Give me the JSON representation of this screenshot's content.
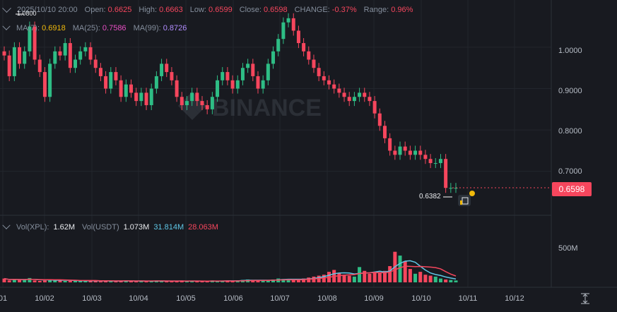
{
  "header": {
    "datetime": "2025/10/10 20:00",
    "open_label": "Open:",
    "open": "0.6625",
    "high_label": "High:",
    "high": "0.6663",
    "low_label": "Low:",
    "low": "0.6599",
    "close_label": "Close:",
    "close": "0.6598",
    "change_label": "CHANGE:",
    "change": "-0.37%",
    "range_label": "Range:",
    "range": "0.96%"
  },
  "ma": {
    "ma7_label": "MA(7):",
    "ma7": "0.6918",
    "ma25_label": "MA(25):",
    "ma25": "0.7586",
    "ma99_label": "MA(99):",
    "ma99": "0.8726"
  },
  "volume": {
    "vol_xpl_label": "Vol(XPL):",
    "vol_xpl": "1.62M",
    "vol_usdt_label": "Vol(USDT)",
    "vol_usdt": "1.073M",
    "ma_a": "31.814M",
    "ma_b": "28.063M"
  },
  "high_marker": "1.0800",
  "low_marker": "0.6382",
  "current_price": "0.6598",
  "watermark": "BINANCE",
  "colors": {
    "up": "#2ebd85",
    "down": "#f6465d",
    "ma7": "#f0b90b",
    "ma25": "#e84fc4",
    "ma99": "#b18cfe",
    "vol_ma_a": "#5fc7e6",
    "vol_ma_b": "#f6465d"
  },
  "chart_data": {
    "type": "candlestick",
    "y_ticks": [
      "1.0000",
      "0.9000",
      "0.8000",
      "0.7000"
    ],
    "volume_ticks": [
      "500M"
    ],
    "x_ticks": [
      "01",
      "10/02",
      "10/03",
      "10/04",
      "10/05",
      "10/06",
      "10/07",
      "10/08",
      "10/09",
      "10/10",
      "10/11",
      "10/12"
    ],
    "ylim": [
      0.6,
      1.12
    ],
    "volume_ylim": [
      0,
      650
    ],
    "candles_close": [
      0.98,
      0.93,
      1.0,
      0.96,
      0.99,
      1.05,
      0.97,
      0.94,
      0.88,
      0.96,
      0.99,
      0.98,
      1.01,
      0.95,
      0.97,
      0.99,
      1.0,
      0.97,
      0.95,
      0.93,
      0.9,
      0.94,
      0.92,
      0.88,
      0.91,
      0.89,
      0.87,
      0.89,
      0.86,
      0.9,
      0.93,
      0.96,
      0.94,
      0.92,
      0.88,
      0.86,
      0.87,
      0.89,
      0.87,
      0.86,
      0.85,
      0.88,
      0.92,
      0.94,
      0.92,
      0.9,
      0.92,
      0.95,
      0.96,
      0.93,
      0.9,
      0.92,
      0.96,
      0.99,
      1.02,
      1.06,
      1.07,
      1.04,
      1.01,
      0.99,
      0.97,
      0.95,
      0.93,
      0.92,
      0.91,
      0.9,
      0.89,
      0.88,
      0.87,
      0.88,
      0.89,
      0.88,
      0.87,
      0.84,
      0.81,
      0.78,
      0.75,
      0.74,
      0.76,
      0.75,
      0.74,
      0.75,
      0.74,
      0.73,
      0.72,
      0.72,
      0.73,
      0.66,
      0.66,
      0.66
    ],
    "volumes": [
      40,
      20,
      35,
      25,
      30,
      45,
      20,
      15,
      20,
      30,
      25,
      20,
      15,
      15,
      20,
      15,
      20,
      15,
      15,
      10,
      20,
      15,
      10,
      15,
      20,
      15,
      10,
      15,
      10,
      15,
      20,
      15,
      10,
      10,
      15,
      20,
      10,
      15,
      10,
      10,
      15,
      20,
      10,
      15,
      20,
      15,
      20,
      25,
      30,
      20,
      15,
      20,
      25,
      30,
      40,
      35,
      30,
      25,
      30,
      40,
      50,
      60,
      70,
      80,
      110,
      130,
      100,
      80,
      70,
      60,
      160,
      120,
      90,
      110,
      100,
      120,
      170,
      320,
      280,
      220,
      140,
      90,
      110,
      80,
      70,
      60,
      40,
      30,
      25,
      20
    ]
  }
}
